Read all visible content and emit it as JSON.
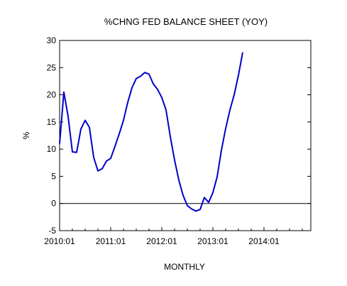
{
  "chart_data": {
    "type": "line",
    "title": "%CHNG FED BALANCE SHEET (YOY)",
    "xlabel": "MONTHLY",
    "ylabel": "%",
    "x_tick_labels": [
      "2010:01",
      "2011:01",
      "2012:01",
      "2013:01",
      "2014:01"
    ],
    "x_start": "2010:01",
    "x_end": "2014:12",
    "ylim": [
      -5,
      30
    ],
    "y_ticks": [
      -5,
      0,
      5,
      10,
      15,
      20,
      25,
      30
    ],
    "zero_line": true,
    "grid": false,
    "series": [
      {
        "name": "",
        "color": "#0000cc",
        "x": [
          "2010:01",
          "2010:02",
          "2010:03",
          "2010:04",
          "2010:05",
          "2010:06",
          "2010:07",
          "2010:08",
          "2010:09",
          "2010:10",
          "2010:11",
          "2010:12",
          "2011:01",
          "2011:02",
          "2011:03",
          "2011:04",
          "2011:05",
          "2011:06",
          "2011:07",
          "2011:08",
          "2011:09",
          "2011:10",
          "2011:11",
          "2011:12",
          "2012:01",
          "2012:02",
          "2012:03",
          "2012:04",
          "2012:05",
          "2012:06",
          "2012:07",
          "2012:08",
          "2012:09",
          "2012:10",
          "2012:11",
          "2012:12",
          "2013:01",
          "2013:02",
          "2013:03",
          "2013:04",
          "2013:05",
          "2013:06",
          "2013:07",
          "2013:08"
        ],
        "values": [
          11,
          20.5,
          16,
          9.5,
          9.4,
          13.7,
          15.3,
          14,
          8.5,
          6,
          6.4,
          7.8,
          8.3,
          10.5,
          12.8,
          15.3,
          18.6,
          21.3,
          23,
          23.4,
          24.1,
          23.8,
          22,
          21,
          19.5,
          17.2,
          12.3,
          8,
          4.3,
          1.5,
          -0.4,
          -1,
          -1.4,
          -1.1,
          1.1,
          0.2,
          2,
          4.9,
          9.8,
          13.8,
          17.2,
          20,
          23.6,
          27.8
        ]
      }
    ]
  }
}
